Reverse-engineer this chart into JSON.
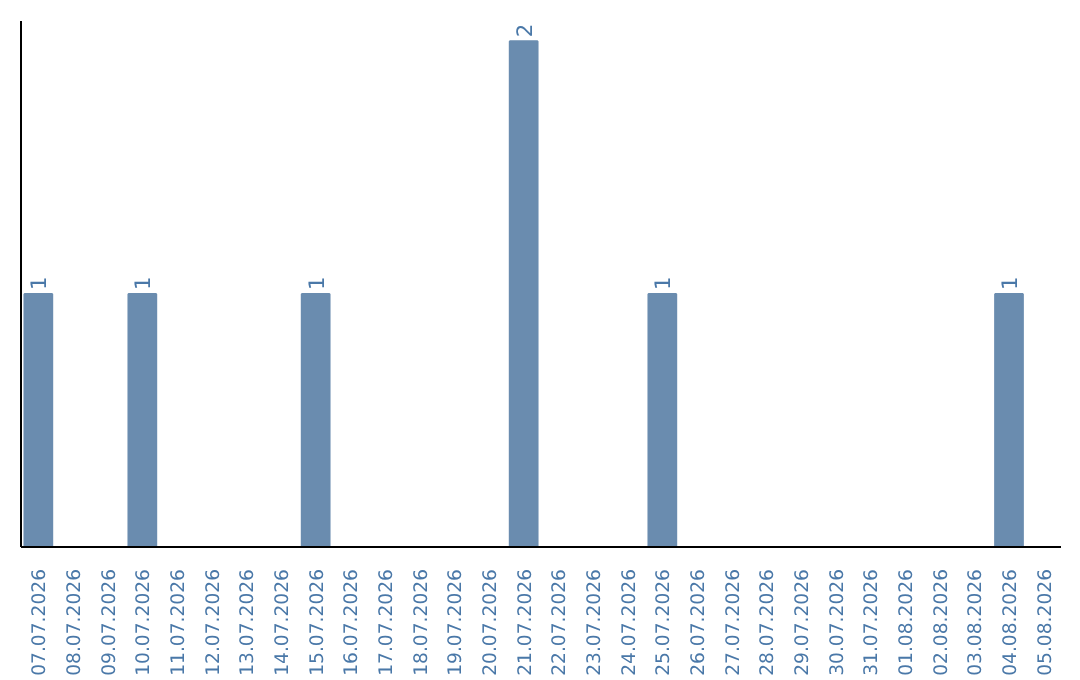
{
  "chart_data": {
    "type": "bar",
    "categories": [
      "07.07.2026",
      "08.07.2026",
      "09.07.2026",
      "10.07.2026",
      "11.07.2026",
      "12.07.2026",
      "13.07.2026",
      "14.07.2026",
      "15.07.2026",
      "16.07.2026",
      "17.07.2026",
      "18.07.2026",
      "19.07.2026",
      "20.07.2026",
      "21.07.2026",
      "22.07.2026",
      "23.07.2026",
      "24.07.2026",
      "25.07.2026",
      "26.07.2026",
      "27.07.2026",
      "28.07.2026",
      "29.07.2026",
      "30.07.2026",
      "31.07.2026",
      "01.08.2026",
      "02.08.2026",
      "03.08.2026",
      "04.08.2026",
      "05.08.2026"
    ],
    "values": [
      1,
      0,
      0,
      1,
      0,
      0,
      0,
      0,
      1,
      0,
      0,
      0,
      0,
      0,
      2,
      0,
      0,
      0,
      1,
      0,
      0,
      0,
      0,
      0,
      0,
      0,
      0,
      0,
      1,
      0
    ],
    "value_labels": [
      "1",
      null,
      null,
      "1",
      null,
      null,
      null,
      null,
      "1",
      null,
      null,
      null,
      null,
      null,
      "2",
      null,
      null,
      null,
      "1",
      null,
      null,
      null,
      null,
      null,
      null,
      null,
      null,
      null,
      "1",
      null
    ],
    "color": "#6a8caf",
    "grid": false,
    "tick_labels": "x"
  }
}
